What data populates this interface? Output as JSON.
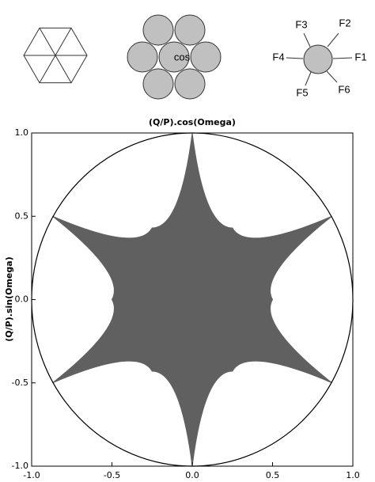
{
  "diagram": {
    "center_label": "cos",
    "force_labels": [
      "F1",
      "F2",
      "F3",
      "F4",
      "F5",
      "F6"
    ]
  },
  "chart_data": {
    "type": "filled-curve",
    "title": "(Q/P).cos(Omega)",
    "y_label": "(Q/P).sin(Omega)",
    "x": [
      0,
      0.25,
      0.87,
      0.5,
      0.87,
      0.25,
      0,
      -0.25,
      -0.87,
      -0.5,
      -0.87,
      -0.25
    ],
    "y": [
      1,
      0.43,
      0.5,
      0,
      -0.5,
      -0.43,
      -1,
      -0.43,
      -0.5,
      0,
      0.5,
      0.43
    ],
    "color": "#606060",
    "xlim": [
      -1,
      1
    ],
    "ylim": [
      -1,
      1
    ],
    "xticks": [
      {
        "value": -1,
        "label": "-1.0"
      },
      {
        "value": -0.5,
        "label": "-0.5"
      },
      {
        "value": 0,
        "label": "0.0"
      },
      {
        "value": 0.5,
        "label": "0.5"
      },
      {
        "value": 1,
        "label": "1.0"
      }
    ],
    "yticks": [
      {
        "value": -1,
        "label": "-1.0"
      },
      {
        "value": -0.5,
        "label": "-0.5"
      },
      {
        "value": 0,
        "label": "0.0"
      },
      {
        "value": 0.5,
        "label": "0.5"
      },
      {
        "value": 1,
        "label": "1.0"
      }
    ]
  }
}
